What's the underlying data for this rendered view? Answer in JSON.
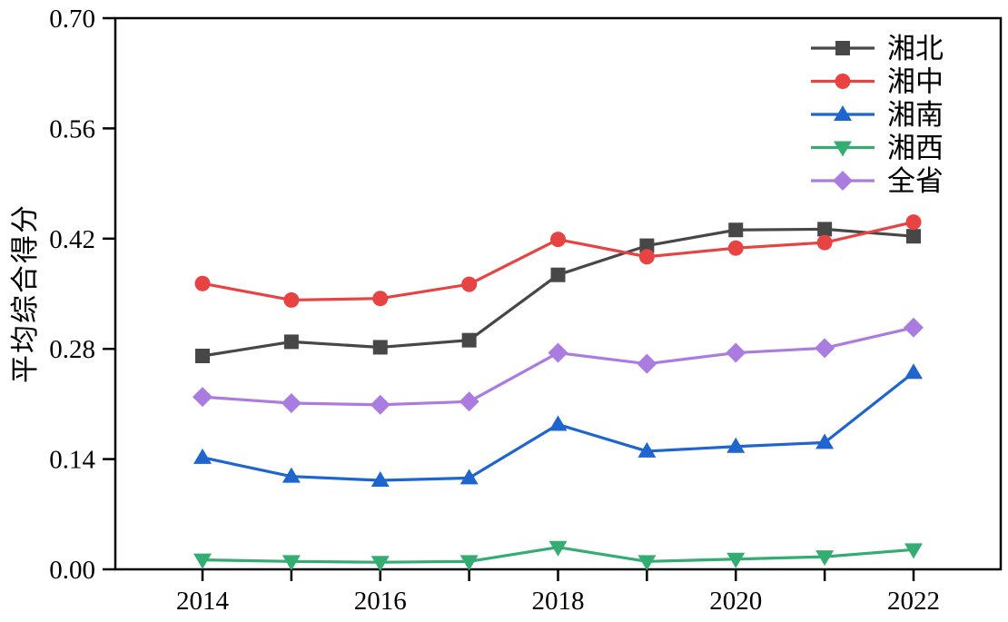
{
  "chart_data": {
    "type": "line",
    "title": "",
    "xlabel": "",
    "ylabel": "平均综合得分",
    "x": [
      2014,
      2015,
      2016,
      2017,
      2018,
      2019,
      2020,
      2021,
      2022
    ],
    "xtick_labels": [
      "2014",
      "2016",
      "2018",
      "2020",
      "2022"
    ],
    "xtick_label_years": [
      2014,
      2016,
      2018,
      2020,
      2022
    ],
    "ytick_labels": [
      "0.00",
      "0.14",
      "0.28",
      "0.42",
      "0.56",
      "0.70"
    ],
    "ylim": [
      0.0,
      0.7
    ],
    "xlim": [
      2013,
      2023
    ],
    "grid": false,
    "legend_position": "top-right",
    "axis_color": "#000000",
    "series": [
      {
        "name": "湘北",
        "marker": "square",
        "color": "#474747",
        "values": [
          0.271,
          0.289,
          0.282,
          0.291,
          0.374,
          0.411,
          0.431,
          0.432,
          0.423
        ]
      },
      {
        "name": "湘中",
        "marker": "circle",
        "color": "#e84343",
        "values": [
          0.363,
          0.342,
          0.344,
          0.362,
          0.419,
          0.397,
          0.408,
          0.415,
          0.441
        ]
      },
      {
        "name": "湘南",
        "marker": "triangle-up",
        "color": "#1f65cf",
        "values": [
          0.142,
          0.118,
          0.113,
          0.116,
          0.184,
          0.15,
          0.156,
          0.161,
          0.25
        ]
      },
      {
        "name": "湘西",
        "marker": "triangle-down",
        "color": "#34ad72",
        "values": [
          0.012,
          0.01,
          0.009,
          0.01,
          0.028,
          0.01,
          0.013,
          0.016,
          0.025
        ]
      },
      {
        "name": "全省",
        "marker": "diamond",
        "color": "#ab7ce0",
        "values": [
          0.219,
          0.211,
          0.209,
          0.213,
          0.275,
          0.261,
          0.275,
          0.281,
          0.307
        ]
      }
    ]
  }
}
